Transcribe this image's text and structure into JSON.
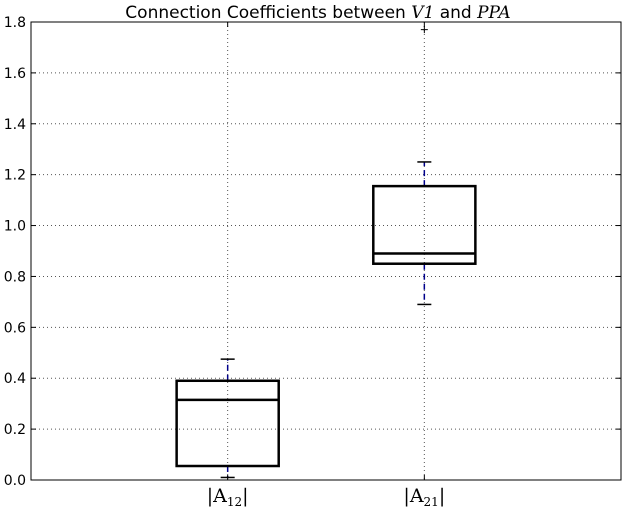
{
  "chart_data": {
    "type": "boxplot",
    "title": {
      "prefix": "Connection Coefficients between ",
      "var1": "V1",
      "middle": " and ",
      "var2": "PPA"
    },
    "xlabel": "",
    "ylabel": "",
    "ylim": [
      0,
      1.8
    ],
    "yticks": [
      "0.0",
      "0.2",
      "0.4",
      "0.6",
      "0.8",
      "1.0",
      "1.2",
      "1.4",
      "1.6",
      "1.8"
    ],
    "grid": true,
    "categories": [
      {
        "base": "|A",
        "sub": "12",
        "end": "|"
      },
      {
        "base": "|A",
        "sub": "21",
        "end": "|"
      }
    ],
    "boxes": [
      {
        "whisker_low": 0.01,
        "q1": 0.055,
        "median": 0.315,
        "q3": 0.39,
        "whisker_high": 0.475,
        "outliers": []
      },
      {
        "whisker_low": 0.69,
        "q1": 0.85,
        "median": 0.89,
        "q3": 1.155,
        "whisker_high": 1.25,
        "outliers": [
          1.77
        ]
      }
    ],
    "colors": {
      "box": "#000000",
      "whisker": "#00008b",
      "grid": "#555555",
      "axes": "#000000"
    }
  }
}
